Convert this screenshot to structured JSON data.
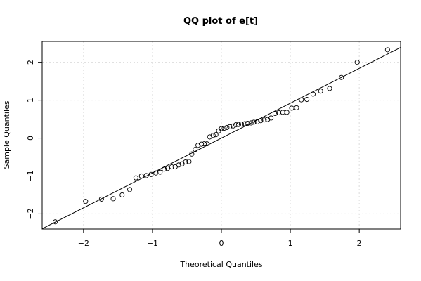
{
  "chart_data": {
    "type": "scatter",
    "title": "QQ plot of e[t]",
    "xlabel": "Theoretical Quantiles",
    "ylabel": "Sample Quantiles",
    "xlim": [
      -2.6,
      2.6
    ],
    "ylim": [
      -2.4,
      2.55
    ],
    "grid": true,
    "x_ticks": [
      -2,
      -1,
      0,
      1,
      2
    ],
    "y_ticks": [
      -2,
      -1,
      0,
      1,
      2
    ],
    "x_tick_labels": [
      "−2",
      "−1",
      "0",
      "1",
      "2"
    ],
    "y_tick_labels": [
      "−2",
      "−1",
      "0",
      "1",
      "2"
    ],
    "points": [
      [
        -2.41,
        -2.21
      ],
      [
        -1.97,
        -1.67
      ],
      [
        -1.74,
        -1.61
      ],
      [
        -1.57,
        -1.6
      ],
      [
        -1.44,
        -1.5
      ],
      [
        -1.33,
        -1.36
      ],
      [
        -1.24,
        -1.05
      ],
      [
        -1.16,
        -1.0
      ],
      [
        -1.09,
        -0.99
      ],
      [
        -1.02,
        -0.96
      ],
      [
        -0.95,
        -0.92
      ],
      [
        -0.89,
        -0.9
      ],
      [
        -0.83,
        -0.82
      ],
      [
        -0.78,
        -0.8
      ],
      [
        -0.72,
        -0.76
      ],
      [
        -0.67,
        -0.76
      ],
      [
        -0.62,
        -0.71
      ],
      [
        -0.57,
        -0.68
      ],
      [
        -0.52,
        -0.63
      ],
      [
        -0.47,
        -0.62
      ],
      [
        -0.43,
        -0.42
      ],
      [
        -0.38,
        -0.3
      ],
      [
        -0.34,
        -0.19
      ],
      [
        -0.29,
        -0.16
      ],
      [
        -0.25,
        -0.15
      ],
      [
        -0.21,
        -0.15
      ],
      [
        -0.17,
        0.03
      ],
      [
        -0.12,
        0.07
      ],
      [
        -0.08,
        0.09
      ],
      [
        -0.04,
        0.19
      ],
      [
        0.0,
        0.25
      ],
      [
        0.04,
        0.26
      ],
      [
        0.08,
        0.28
      ],
      [
        0.12,
        0.3
      ],
      [
        0.17,
        0.32
      ],
      [
        0.21,
        0.35
      ],
      [
        0.25,
        0.36
      ],
      [
        0.29,
        0.37
      ],
      [
        0.34,
        0.38
      ],
      [
        0.38,
        0.39
      ],
      [
        0.43,
        0.4
      ],
      [
        0.47,
        0.42
      ],
      [
        0.52,
        0.43
      ],
      [
        0.57,
        0.46
      ],
      [
        0.62,
        0.48
      ],
      [
        0.67,
        0.49
      ],
      [
        0.72,
        0.53
      ],
      [
        0.78,
        0.65
      ],
      [
        0.83,
        0.67
      ],
      [
        0.89,
        0.68
      ],
      [
        0.95,
        0.68
      ],
      [
        1.02,
        0.79
      ],
      [
        1.09,
        0.8
      ],
      [
        1.16,
        1.01
      ],
      [
        1.24,
        1.02
      ],
      [
        1.33,
        1.16
      ],
      [
        1.44,
        1.24
      ],
      [
        1.57,
        1.31
      ],
      [
        1.74,
        1.6
      ],
      [
        1.97,
        2.0
      ],
      [
        2.41,
        2.33
      ]
    ],
    "qq_line": {
      "intercept": 0.0,
      "slope": 0.92
    },
    "plot_region": {
      "x0": 60,
      "x1": 570,
      "y0": 59,
      "y1": 326
    },
    "style": {
      "axis_color": "#000000",
      "grid_color": "#dcdcdc",
      "point_stroke": "#000000",
      "line_color": "#000000"
    }
  }
}
